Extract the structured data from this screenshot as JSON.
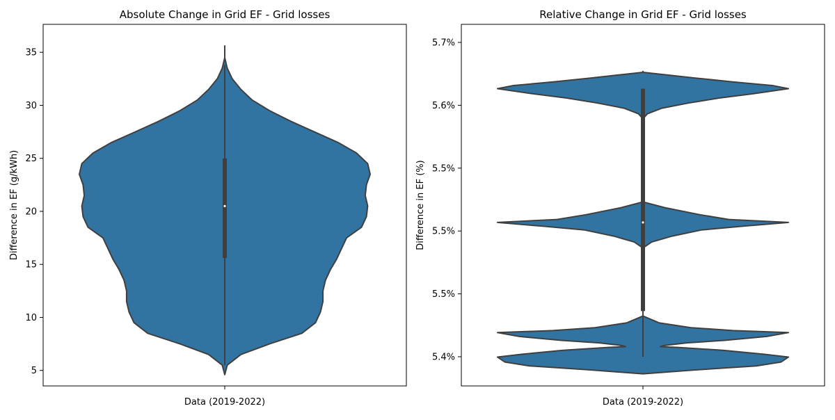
{
  "chart_data": [
    {
      "type": "violin",
      "title": "Absolute Change in Grid EF - Grid losses",
      "xlabel": "Data (2019-2022)",
      "ylabel": "Difference in EF (g/kWh)",
      "yticks": [
        5,
        10,
        15,
        20,
        25,
        30,
        35
      ],
      "ytick_labels": [
        "5",
        "10",
        "15",
        "20",
        "25",
        "30",
        "35"
      ],
      "color": "#3274a1",
      "stats": {
        "min": 5.5,
        "q1": 15.6,
        "median": 20.5,
        "q3": 25.0,
        "max": 33.8
      },
      "density_profile": [
        [
          4.6,
          0.0
        ],
        [
          5.5,
          0.02
        ],
        [
          6.5,
          0.13
        ],
        [
          7.5,
          0.36
        ],
        [
          8.5,
          0.62
        ],
        [
          9.5,
          0.73
        ],
        [
          10.5,
          0.77
        ],
        [
          11.5,
          0.79
        ],
        [
          12.5,
          0.79
        ],
        [
          13.5,
          0.81
        ],
        [
          14.5,
          0.85
        ],
        [
          15.5,
          0.9
        ],
        [
          16.5,
          0.94
        ],
        [
          17.5,
          0.98
        ],
        [
          18.5,
          1.1
        ],
        [
          19.5,
          1.14
        ],
        [
          20.5,
          1.15
        ],
        [
          21.5,
          1.13
        ],
        [
          22.5,
          1.14
        ],
        [
          23.5,
          1.17
        ],
        [
          24.5,
          1.15
        ],
        [
          25.5,
          1.06
        ],
        [
          26.5,
          0.91
        ],
        [
          27.5,
          0.72
        ],
        [
          28.5,
          0.53
        ],
        [
          29.5,
          0.36
        ],
        [
          30.5,
          0.22
        ],
        [
          31.5,
          0.13
        ],
        [
          32.5,
          0.06
        ],
        [
          33.5,
          0.02
        ],
        [
          34.5,
          0.0
        ],
        [
          35.6,
          0.0
        ]
      ]
    },
    {
      "type": "violin",
      "title": "Relative Change in Grid EF - Grid losses",
      "xlabel": "Data (2019-2022)",
      "ylabel": "Difference in EF (%)",
      "yticks": [
        5.4,
        5.45,
        5.5,
        5.55,
        5.6,
        5.65
      ],
      "ytick_labels": [
        "5.4%",
        "5.5%",
        "5.5%",
        "5.5%",
        "5.6%",
        "5.7%"
      ],
      "color": "#3274a1",
      "stats": {
        "min": 5.4,
        "q1": 5.4363,
        "median": 5.5068,
        "q3": 5.6132,
        "max": 5.6132
      },
      "density_profile": [
        [
          5.3864,
          0.0
        ],
        [
          5.3895,
          0.36
        ],
        [
          5.3927,
          0.78
        ],
        [
          5.3958,
          0.95
        ],
        [
          5.3997,
          1.0
        ],
        [
          5.402,
          0.83
        ],
        [
          5.4051,
          0.55
        ],
        [
          5.4074,
          0.24
        ],
        [
          5.408,
          0.12
        ],
        [
          5.409,
          0.15
        ],
        [
          5.411,
          0.3
        ],
        [
          5.413,
          0.56
        ],
        [
          5.4161,
          0.85
        ],
        [
          5.4192,
          1.0
        ],
        [
          5.4208,
          0.62
        ],
        [
          5.4231,
          0.33
        ],
        [
          5.427,
          0.11
        ],
        [
          5.4324,
          0.0
        ],
        [
          5.4363,
          0.0
        ],
        [
          5.4386,
          0.0
        ],
        [
          5.448,
          0.0
        ],
        [
          5.4599,
          0.0
        ],
        [
          5.4701,
          0.0
        ],
        [
          5.4786,
          0.0
        ],
        [
          5.4865,
          0.0
        ],
        [
          5.4912,
          0.06
        ],
        [
          5.4959,
          0.2
        ],
        [
          5.5008,
          0.4
        ],
        [
          5.5038,
          0.69
        ],
        [
          5.5068,
          1.0
        ],
        [
          5.5092,
          0.59
        ],
        [
          5.513,
          0.39
        ],
        [
          5.5186,
          0.15
        ],
        [
          5.5232,
          0.0
        ],
        [
          5.528,
          0.0
        ],
        [
          5.538,
          0.0
        ],
        [
          5.549,
          0.0
        ],
        [
          5.559,
          0.0
        ],
        [
          5.569,
          0.0
        ],
        [
          5.5782,
          0.0
        ],
        [
          5.5842,
          0.0
        ],
        [
          5.5892,
          0.0
        ],
        [
          5.5932,
          0.03
        ],
        [
          5.5977,
          0.13
        ],
        [
          5.6017,
          0.31
        ],
        [
          5.6057,
          0.52
        ],
        [
          5.6092,
          0.76
        ],
        [
          5.6132,
          1.0
        ],
        [
          5.6157,
          0.89
        ],
        [
          5.6187,
          0.61
        ],
        [
          5.6217,
          0.36
        ],
        [
          5.6242,
          0.16
        ],
        [
          5.6262,
          0.0
        ],
        [
          5.627,
          0.0
        ]
      ]
    }
  ]
}
